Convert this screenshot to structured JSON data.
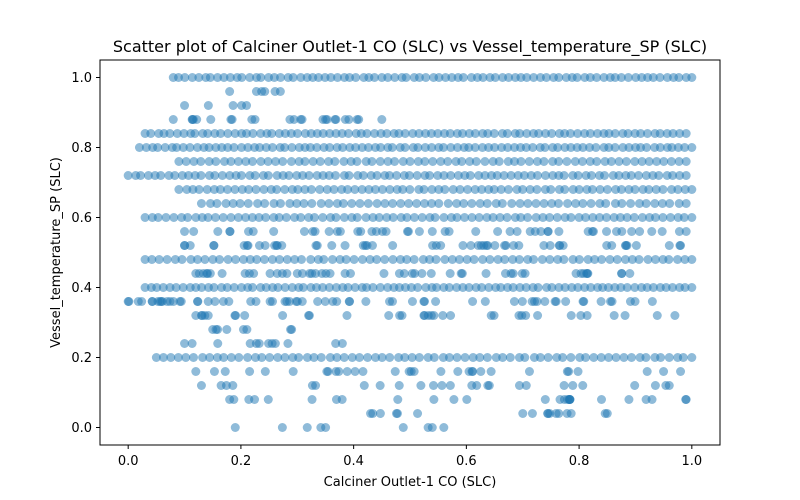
{
  "chart_data": {
    "type": "scatter",
    "title": "Scatter plot of Calciner Outlet-1 CO (SLC) vs Vessel_temperature_SP (SLC)",
    "xlabel": "Calciner Outlet-1 CO (SLC)",
    "ylabel": "Vessel_temperature_SP (SLC)",
    "xlim": [
      -0.05,
      1.05
    ],
    "ylim": [
      -0.05,
      1.05
    ],
    "xticks": [
      "0.0",
      "0.2",
      "0.4",
      "0.6",
      "0.8",
      "1.0"
    ],
    "yticks": [
      "0.0",
      "0.2",
      "0.4",
      "0.6",
      "0.8",
      "1.0"
    ],
    "grid": false,
    "legend": "none",
    "marker_color": "#1f77b4",
    "marker_alpha": 0.5,
    "bands": [
      {
        "y": 1.0,
        "x_min": 0.08,
        "x_max": 1.0,
        "density": 0.95
      },
      {
        "y": 0.96,
        "x_min": 0.18,
        "x_max": 0.27,
        "density": 0.2
      },
      {
        "y": 0.92,
        "x_min": 0.1,
        "x_max": 0.21,
        "density": 0.1
      },
      {
        "y": 0.88,
        "x_min": 0.08,
        "x_max": 0.45,
        "density": 0.6
      },
      {
        "y": 0.84,
        "x_min": 0.03,
        "x_max": 0.99,
        "density": 0.95
      },
      {
        "y": 0.8,
        "x_min": 0.02,
        "x_max": 1.0,
        "density": 0.95
      },
      {
        "y": 0.76,
        "x_min": 0.09,
        "x_max": 0.99,
        "density": 0.8
      },
      {
        "y": 0.72,
        "x_min": 0.0,
        "x_max": 0.99,
        "density": 0.9
      },
      {
        "y": 0.68,
        "x_min": 0.09,
        "x_max": 1.0,
        "density": 0.85
      },
      {
        "y": 0.64,
        "x_min": 0.13,
        "x_max": 0.99,
        "density": 0.75
      },
      {
        "y": 0.6,
        "x_min": 0.03,
        "x_max": 1.0,
        "density": 0.85
      },
      {
        "y": 0.56,
        "x_min": 0.1,
        "x_max": 0.99,
        "density": 0.55
      },
      {
        "y": 0.52,
        "x_min": 0.1,
        "x_max": 0.98,
        "density": 0.6
      },
      {
        "y": 0.48,
        "x_min": 0.03,
        "x_max": 1.0,
        "density": 0.8
      },
      {
        "y": 0.44,
        "x_min": 0.12,
        "x_max": 0.89,
        "density": 0.65
      },
      {
        "y": 0.4,
        "x_min": 0.03,
        "x_max": 1.0,
        "density": 0.95
      },
      {
        "y": 0.36,
        "x_min": 0.0,
        "x_max": 0.93,
        "density": 0.7
      },
      {
        "y": 0.32,
        "x_min": 0.12,
        "x_max": 0.97,
        "density": 0.4
      },
      {
        "y": 0.28,
        "x_min": 0.15,
        "x_max": 0.29,
        "density": 0.35
      },
      {
        "y": 0.24,
        "x_min": 0.1,
        "x_max": 0.38,
        "density": 0.3
      },
      {
        "y": 0.2,
        "x_min": 0.05,
        "x_max": 1.0,
        "density": 0.8
      },
      {
        "y": 0.16,
        "x_min": 0.12,
        "x_max": 0.98,
        "density": 0.35
      },
      {
        "y": 0.12,
        "x_min": 0.13,
        "x_max": 0.96,
        "density": 0.3
      },
      {
        "y": 0.08,
        "x_min": 0.18,
        "x_max": 0.99,
        "density": 0.3
      },
      {
        "y": 0.04,
        "x_min": 0.43,
        "x_max": 0.85,
        "density": 0.35
      },
      {
        "y": 0.0,
        "x_min": 0.19,
        "x_max": 0.56,
        "density": 0.15
      }
    ]
  }
}
